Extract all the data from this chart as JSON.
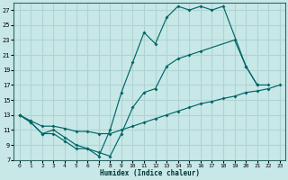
{
  "xlabel": "Humidex (Indice chaleur)",
  "bg_color": "#c8e8e8",
  "grid_color": "#b0d4d4",
  "line_color": "#006666",
  "xlim": [
    -0.5,
    23.5
  ],
  "ylim": [
    7,
    28
  ],
  "yticks": [
    7,
    9,
    11,
    13,
    15,
    17,
    19,
    21,
    23,
    25,
    27
  ],
  "xticks": [
    0,
    1,
    2,
    3,
    4,
    5,
    6,
    7,
    8,
    9,
    10,
    11,
    12,
    13,
    14,
    15,
    16,
    17,
    18,
    19,
    20,
    21,
    22,
    23
  ],
  "curves": [
    {
      "x": [
        0,
        1,
        2,
        3,
        4,
        5,
        6,
        7,
        8,
        9,
        10,
        11,
        12,
        13,
        14,
        15,
        16,
        17,
        18,
        20,
        21
      ],
      "y": [
        13,
        12,
        10.5,
        10.5,
        9.5,
        8.5,
        8.5,
        7.5,
        11,
        16,
        20,
        24,
        22.5,
        26,
        27.5,
        27,
        27.5,
        27,
        27.5,
        19.5,
        17
      ]
    },
    {
      "x": [
        0,
        1,
        2,
        3,
        4,
        5,
        6,
        7,
        8,
        9,
        10,
        11,
        12,
        13,
        14,
        15,
        16,
        19,
        20,
        21,
        22
      ],
      "y": [
        13,
        12,
        10.5,
        11,
        10,
        9,
        8.5,
        8,
        7.5,
        10.5,
        14,
        16,
        16.5,
        19.5,
        20.5,
        21,
        21.5,
        23,
        19.5,
        17,
        17
      ]
    },
    {
      "x": [
        0,
        1,
        2,
        3,
        4,
        5,
        6,
        7,
        8,
        9,
        10,
        11,
        12,
        13,
        14,
        15,
        16,
        17,
        18,
        19,
        20,
        21,
        22,
        23
      ],
      "y": [
        13,
        12.2,
        11.5,
        11.5,
        11.2,
        10.8,
        10.8,
        10.5,
        10.5,
        11,
        11.5,
        12,
        12.5,
        13,
        13.5,
        14,
        14.5,
        14.8,
        15.2,
        15.5,
        16,
        16.2,
        16.5,
        17
      ]
    }
  ]
}
